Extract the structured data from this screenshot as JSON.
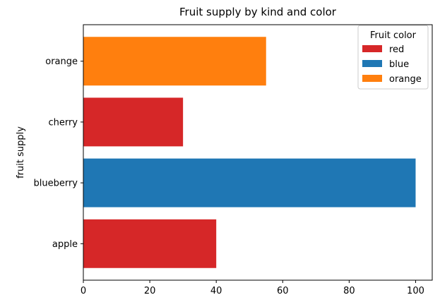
{
  "chart_data": {
    "type": "bar",
    "orientation": "horizontal",
    "title": "Fruit supply by kind and color",
    "xlabel": "",
    "ylabel": "fruit supply",
    "categories": [
      "apple",
      "blueberry",
      "cherry",
      "orange"
    ],
    "values": [
      40,
      100,
      30,
      55
    ],
    "bar_colors": [
      "#d62728",
      "#1f77b4",
      "#d62728",
      "#ff7f0e"
    ],
    "xlim": [
      0,
      105
    ],
    "xticks": [
      0,
      20,
      40,
      60,
      80,
      100
    ],
    "grid": false,
    "legend": {
      "title": "Fruit color",
      "placement": "top-right",
      "entries": [
        {
          "label": "red",
          "color": "#d62728"
        },
        {
          "label": "blue",
          "color": "#1f77b4"
        },
        {
          "label": "orange",
          "color": "#ff7f0e"
        }
      ]
    }
  }
}
